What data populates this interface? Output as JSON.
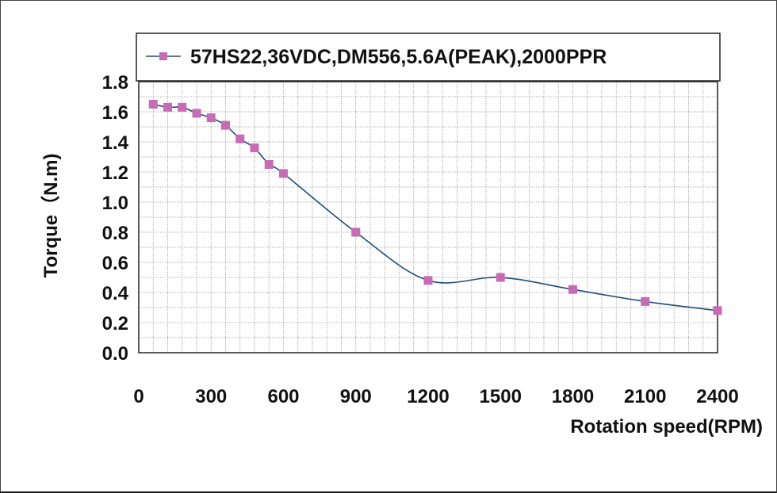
{
  "chart_data": {
    "type": "line",
    "xlabel": "Rotation speed(RPM)",
    "ylabel": "Torque（N.m)",
    "xlim": [
      0,
      2400
    ],
    "ylim": [
      0,
      1.8
    ],
    "x_ticks": [
      "0",
      "300",
      "600",
      "900",
      "1200",
      "1500",
      "1800",
      "2100",
      "2400"
    ],
    "y_ticks": [
      "0.0",
      "0.2",
      "0.4",
      "0.6",
      "0.8",
      "1.0",
      "1.2",
      "1.4",
      "1.6",
      "1.8"
    ],
    "grid": true,
    "legend_position": "top",
    "series": [
      {
        "name": "57HS22,36VDC,DM556,5.6A(PEAK),2000PPR",
        "color": "#c76bb5",
        "line_color": "#1f4e79",
        "marker": "square",
        "x": [
          60,
          120,
          180,
          240,
          300,
          360,
          420,
          480,
          540,
          600,
          900,
          1200,
          1500,
          1800,
          2100,
          2400
        ],
        "y": [
          1.65,
          1.63,
          1.63,
          1.59,
          1.56,
          1.51,
          1.42,
          1.36,
          1.25,
          1.19,
          0.8,
          0.48,
          0.5,
          0.42,
          0.34,
          0.28
        ]
      }
    ]
  }
}
